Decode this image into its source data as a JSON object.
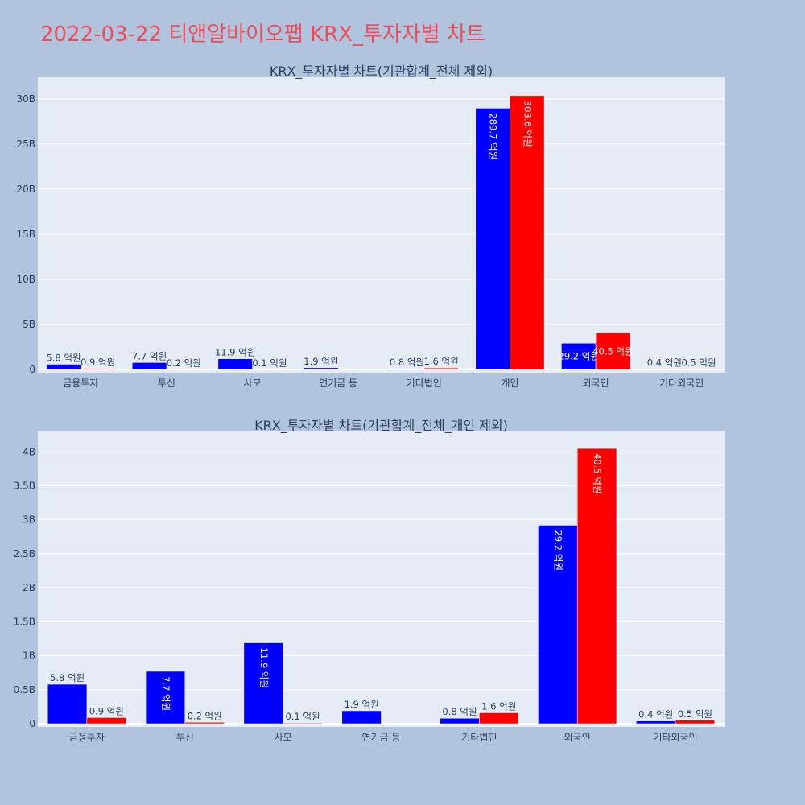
{
  "title": "2022-03-22 티앤알바이오팹 KRX_투자자별 차트",
  "colors": {
    "paper": "#b0c4de",
    "plot_bg": "#e5ecf6",
    "buy": "#0000ff",
    "sell": "#ff0000",
    "title": "#ef4d5a",
    "text": "#2a3f5f"
  },
  "chart_data": [
    {
      "type": "bar",
      "title": "KRX_투자자별 차트(기관합계_전체 제외)",
      "categories": [
        "금융투자",
        "투신",
        "사모",
        "연기금 등",
        "기타법인",
        "개인",
        "외국인",
        "기타외국인"
      ],
      "series": [
        {
          "values": [
            580000000,
            770000000,
            1190000000,
            190000000,
            80000000,
            28970000000,
            2920000000,
            40000000
          ],
          "labels": [
            "5.8 억원",
            "7.7 억원",
            "11.9 억원",
            "1.9 억원",
            "0.8 억원",
            "289.7 억원",
            "29.2 억원",
            "0.4 억원"
          ]
        },
        {
          "values": [
            90000000,
            20000000,
            10000000,
            0,
            160000000,
            30360000000,
            4050000000,
            50000000
          ],
          "labels": [
            "0.9 억원",
            "0.2 억원",
            "0.1 억원",
            "",
            "1.6 억원",
            "303.6 억원",
            "40.5 억원",
            "0.5 억원"
          ]
        }
      ],
      "yticks": [
        0,
        5000000000,
        10000000000,
        15000000000,
        20000000000,
        25000000000,
        30000000000
      ],
      "ytick_labels": [
        "0",
        "5B",
        "10B",
        "15B",
        "20B",
        "25B",
        "30B"
      ],
      "ylim": [
        0,
        32400000000
      ],
      "grid": true
    },
    {
      "type": "bar",
      "title": "KRX_투자자별 차트(기관합계_전체_개인 제외)",
      "categories": [
        "금융투자",
        "투신",
        "사모",
        "연기금 등",
        "기타법인",
        "외국인",
        "기타외국인"
      ],
      "series": [
        {
          "values": [
            580000000,
            770000000,
            1190000000,
            190000000,
            80000000,
            2920000000,
            40000000
          ],
          "labels": [
            "5.8 억원",
            "7.7 억원",
            "11.9 억원",
            "1.9 억원",
            "0.8 억원",
            "29.2 억원",
            "0.4 억원"
          ]
        },
        {
          "values": [
            90000000,
            20000000,
            10000000,
            0,
            160000000,
            4050000000,
            50000000
          ],
          "labels": [
            "0.9 억원",
            "0.2 억원",
            "0.1 억원",
            "",
            "1.6 억원",
            "40.5 억원",
            "0.5 억원"
          ]
        }
      ],
      "yticks": [
        0,
        500000000,
        1000000000,
        1500000000,
        2000000000,
        2500000000,
        3000000000,
        3500000000,
        4000000000
      ],
      "ytick_labels": [
        "0",
        "0.5B",
        "1B",
        "1.5B",
        "2B",
        "2.5B",
        "3B",
        "3.5B",
        "4B"
      ],
      "ylim": [
        0,
        4300000000
      ],
      "grid": true
    }
  ]
}
